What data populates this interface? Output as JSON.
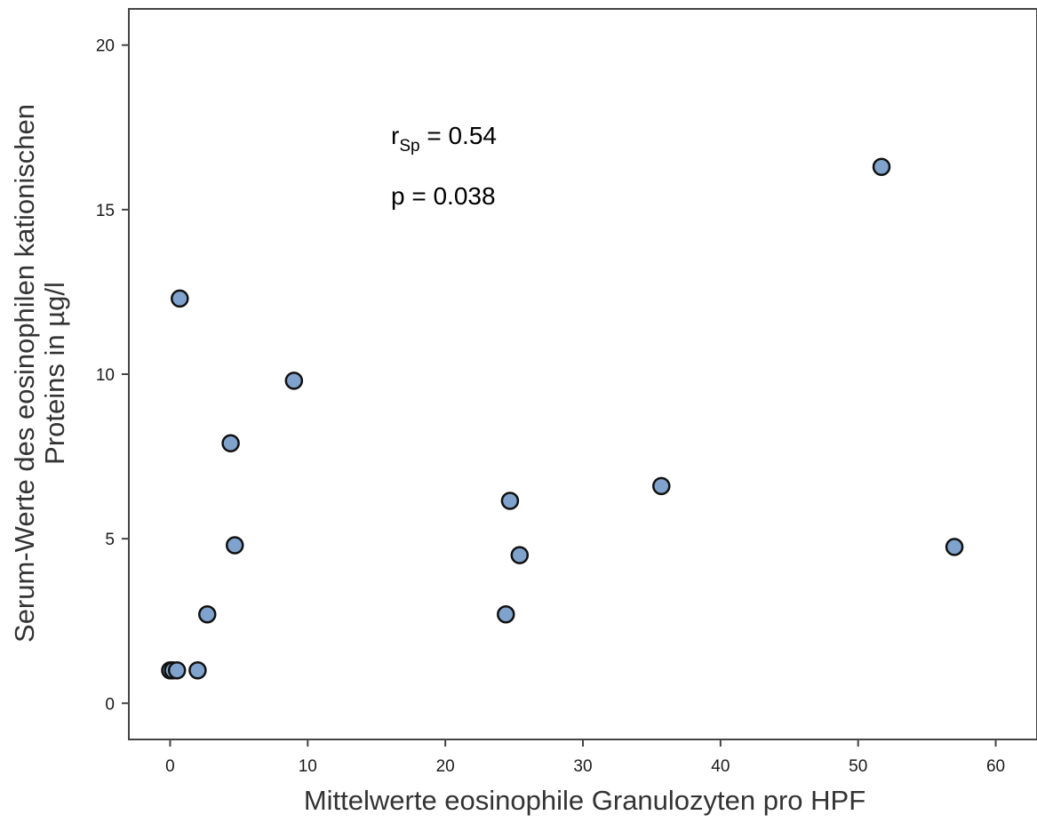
{
  "chart_data": {
    "type": "scatter",
    "xlabel": "Mittelwerte eosinophile Granulozyten pro HPF",
    "ylabel_line1": "Serum-Werte des eosinophilen kationischen",
    "ylabel_line2": "Proteins in µg/l",
    "xlim": [
      -3,
      63
    ],
    "ylim": [
      -1.1,
      21.1
    ],
    "x_ticks": [
      0,
      10,
      20,
      30,
      40,
      50,
      60
    ],
    "y_ticks": [
      0,
      5,
      10,
      15,
      20
    ],
    "grid": false,
    "marker_color": "#7fa3cc",
    "marker_edge": "#111111",
    "annotations": {
      "r_main": "r",
      "r_sub": "Sp",
      "r_value": " = 0.54",
      "p_text": "p = 0.038"
    },
    "points": [
      {
        "x": 0.0,
        "y": 1.0
      },
      {
        "x": 0.2,
        "y": 1.0
      },
      {
        "x": 0.5,
        "y": 1.0
      },
      {
        "x": 2.0,
        "y": 1.0
      },
      {
        "x": 0.7,
        "y": 12.3
      },
      {
        "x": 2.7,
        "y": 2.7
      },
      {
        "x": 4.4,
        "y": 7.9
      },
      {
        "x": 4.7,
        "y": 4.8
      },
      {
        "x": 9.0,
        "y": 9.8
      },
      {
        "x": 24.4,
        "y": 2.7
      },
      {
        "x": 24.7,
        "y": 6.15
      },
      {
        "x": 25.4,
        "y": 4.5
      },
      {
        "x": 35.7,
        "y": 6.6
      },
      {
        "x": 51.7,
        "y": 16.3
      },
      {
        "x": 57.0,
        "y": 4.75
      }
    ]
  }
}
